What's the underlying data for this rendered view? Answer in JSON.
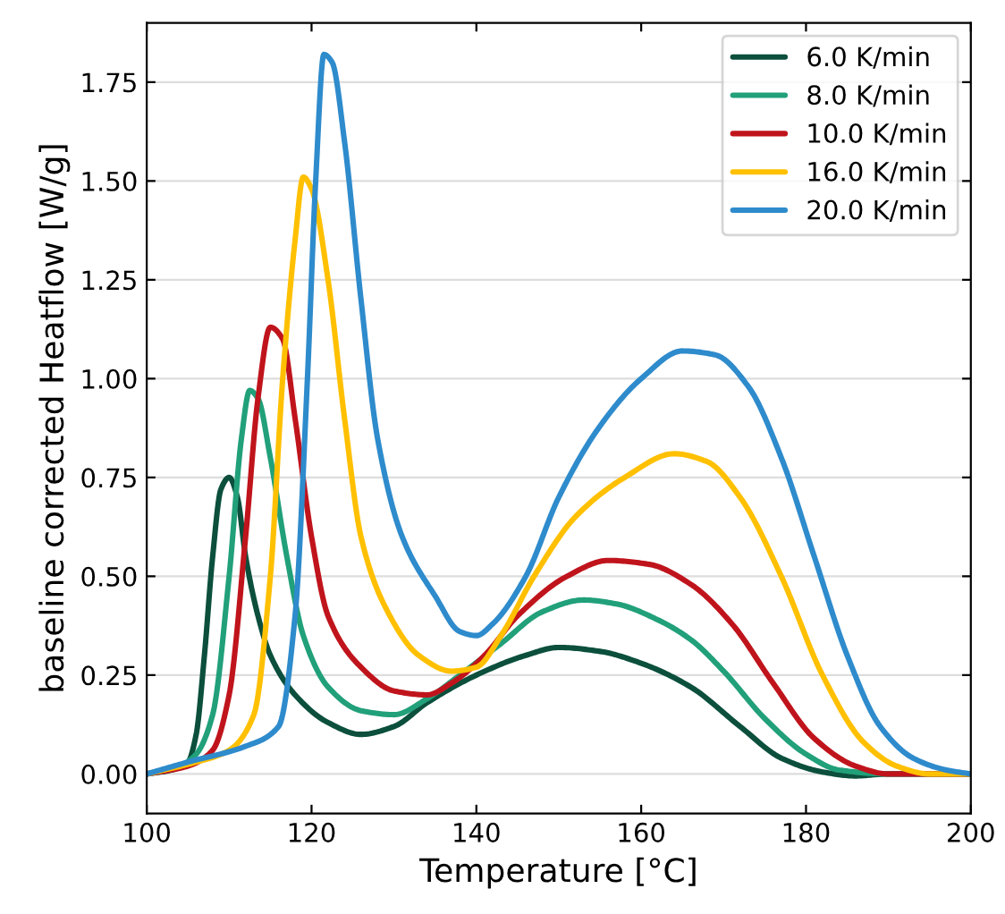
{
  "chart_data": {
    "type": "line",
    "xlabel": "Temperature [°C]",
    "ylabel": "baseline corrected Heatflow [W/g]",
    "xlim": [
      100,
      200
    ],
    "xticks": [
      100,
      120,
      140,
      160,
      180,
      200
    ],
    "ylim": [
      -0.1,
      1.9
    ],
    "yticks": [
      {
        "value": 0,
        "label": "0.00"
      },
      {
        "value": 0.25,
        "label": "0.25"
      },
      {
        "value": 0.5,
        "label": "0.50"
      },
      {
        "value": 0.75,
        "label": "0.75"
      },
      {
        "value": 1,
        "label": "1.00"
      },
      {
        "value": 1.25,
        "label": "1.25"
      },
      {
        "value": 1.5,
        "label": "1.50"
      },
      {
        "value": 1.75,
        "label": "1.75"
      }
    ],
    "grid": "y",
    "legend": "top right",
    "line_style": "solid",
    "series": [
      {
        "name": "6.0 K/min",
        "color": "#0b4f3c",
        "x": [
          100,
          103,
          105,
          106,
          107,
          108,
          109,
          110,
          111,
          112,
          113.5,
          115,
          118,
          122,
          126,
          130,
          134,
          140,
          146,
          150,
          155,
          160,
          166,
          172,
          177,
          182,
          186,
          190,
          200
        ],
        "values": [
          0,
          0.01,
          0.03,
          0.1,
          0.3,
          0.55,
          0.72,
          0.75,
          0.7,
          0.55,
          0.4,
          0.3,
          0.2,
          0.13,
          0.1,
          0.12,
          0.18,
          0.25,
          0.3,
          0.32,
          0.31,
          0.28,
          0.22,
          0.12,
          0.04,
          0.005,
          -0.005,
          0,
          0
        ]
      },
      {
        "name": "8.0 K/min",
        "color": "#21a07a",
        "x": [
          100,
          104,
          106,
          108,
          110,
          111.5,
          112.5,
          113.5,
          115,
          117,
          119,
          122,
          126,
          130,
          134,
          138,
          143,
          148,
          153,
          157,
          162,
          166,
          170,
          175,
          180,
          184,
          190,
          200
        ],
        "values": [
          0,
          0.02,
          0.05,
          0.15,
          0.5,
          0.85,
          0.97,
          0.95,
          0.8,
          0.55,
          0.35,
          0.22,
          0.16,
          0.15,
          0.19,
          0.25,
          0.33,
          0.41,
          0.44,
          0.43,
          0.39,
          0.34,
          0.26,
          0.14,
          0.05,
          0.01,
          0,
          0
        ]
      },
      {
        "name": "10.0 K/min",
        "color": "#c0141c",
        "x": [
          100,
          105,
          108,
          110,
          112,
          113.5,
          115,
          116.5,
          118,
          120,
          122,
          126,
          130,
          134,
          137,
          141,
          145,
          151,
          156,
          161,
          166,
          171,
          176,
          181,
          186,
          190,
          200
        ],
        "values": [
          0,
          0.02,
          0.06,
          0.2,
          0.6,
          0.95,
          1.13,
          1.1,
          0.9,
          0.6,
          0.4,
          0.27,
          0.21,
          0.2,
          0.23,
          0.3,
          0.4,
          0.5,
          0.54,
          0.53,
          0.48,
          0.38,
          0.23,
          0.09,
          0.02,
          0,
          0
        ]
      },
      {
        "name": "16.0 K/min",
        "color": "#ffc000",
        "x": [
          100,
          106,
          110,
          113,
          115,
          116.5,
          118,
          119,
          120,
          122,
          124,
          126,
          129,
          133,
          137,
          140,
          143,
          147,
          152,
          158,
          164,
          168,
          172,
          177,
          182,
          187,
          191,
          195,
          200
        ],
        "values": [
          0,
          0.03,
          0.06,
          0.15,
          0.5,
          1.0,
          1.35,
          1.51,
          1.48,
          1.25,
          0.9,
          0.6,
          0.42,
          0.3,
          0.26,
          0.27,
          0.35,
          0.5,
          0.65,
          0.75,
          0.81,
          0.79,
          0.7,
          0.5,
          0.25,
          0.08,
          0.02,
          0,
          0
        ]
      },
      {
        "name": "20.0 K/min",
        "color": "#2e8bcc",
        "x": [
          100,
          105,
          112,
          116,
          118,
          119.5,
          120.5,
          121.5,
          122.5,
          124,
          126,
          128,
          131,
          135,
          138,
          140,
          142,
          146,
          150,
          155,
          160,
          165,
          169,
          173,
          177,
          181,
          185,
          189,
          193,
          197,
          200
        ],
        "values": [
          0,
          0.03,
          0.07,
          0.12,
          0.4,
          1.0,
          1.5,
          1.82,
          1.8,
          1.6,
          1.2,
          0.85,
          0.6,
          0.45,
          0.36,
          0.35,
          0.38,
          0.5,
          0.7,
          0.88,
          1.0,
          1.07,
          1.06,
          0.98,
          0.8,
          0.55,
          0.3,
          0.12,
          0.04,
          0.01,
          0
        ]
      }
    ]
  }
}
